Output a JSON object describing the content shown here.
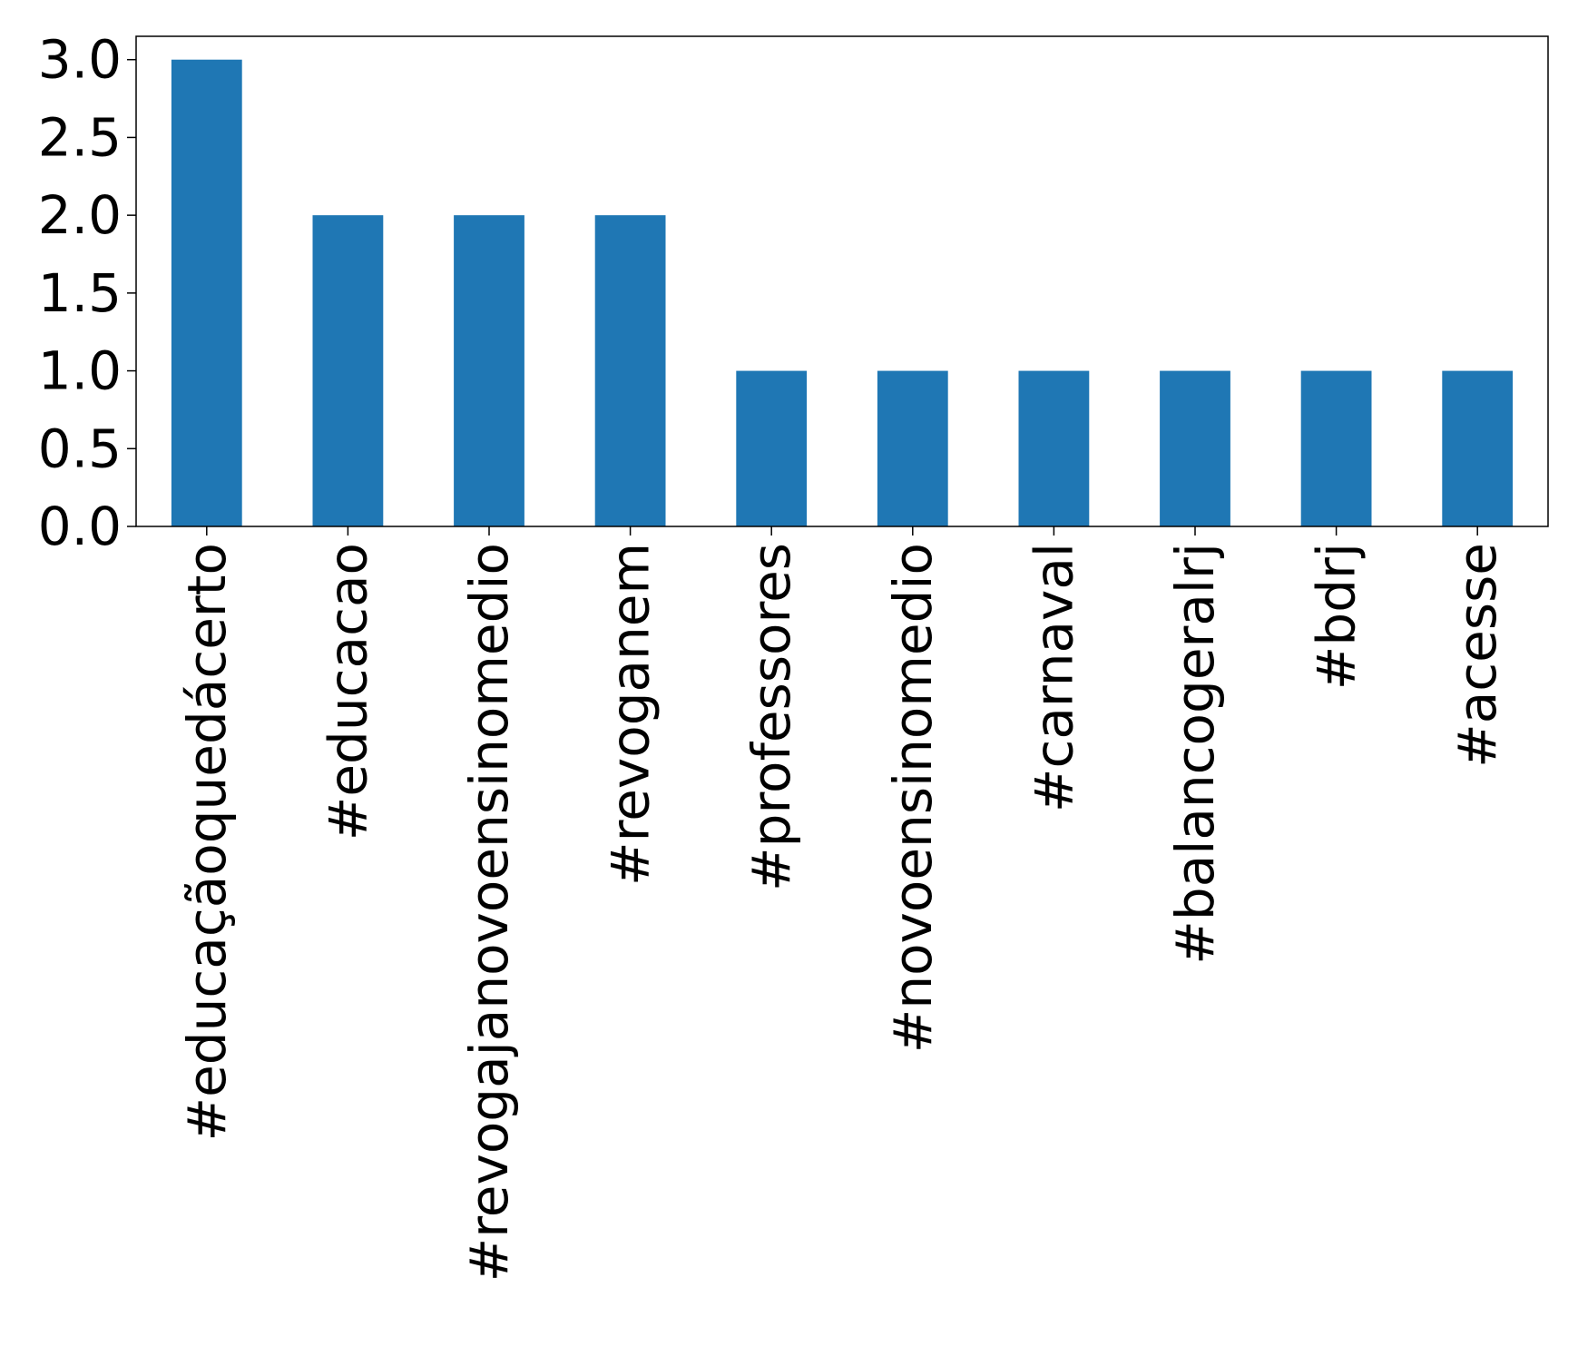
{
  "chart_data": {
    "type": "bar",
    "categories": [
      "#educaçãoquedácerto",
      "#educacao",
      "#revogajanovoensinomedio",
      "#revoganem",
      "#professores",
      "#novoensinomedio",
      "#carnaval",
      "#balancogeralrj",
      "#bdrj",
      "#acesse"
    ],
    "values": [
      3,
      2,
      2,
      2,
      1,
      1,
      1,
      1,
      1,
      1
    ],
    "title": "",
    "xlabel": "",
    "ylabel": "",
    "ylim": [
      0,
      3.15
    ],
    "yticks": [
      "0.0",
      "0.5",
      "1.0",
      "1.5",
      "2.0",
      "2.5",
      "3.0"
    ],
    "grid": false,
    "bar_color": "#1f77b4"
  }
}
